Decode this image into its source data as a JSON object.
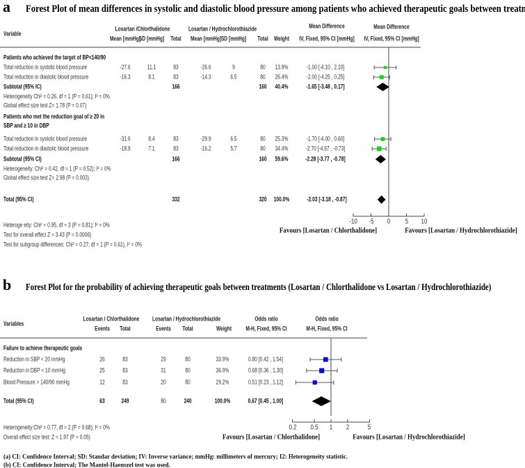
{
  "panel_a": {
    "label": "a",
    "title": "Forest Plot of mean differences in systolic and diastolic blood pressure among patients who achieved therapeutic goals between treatment groups",
    "header": {
      "variable": "Variable",
      "group1": "Losartan /Chlorthalidone",
      "group2": "Losartan / Hydrochlorothiazide",
      "mean": "Mean [mmHg]",
      "sd": "SD [mmHg]",
      "total": "Total",
      "weight": "Weight",
      "effect_title": "Mean Difference",
      "effect_sub": "IV, Fixed, 95% CI [mmHg]",
      "plot_title": "Mean Difference",
      "plot_sub": "IV, Fixed, 95% CI [mmHg]"
    },
    "groups": [
      {
        "title_lines": [
          "Patients who achieved the target of BP<140/90"
        ],
        "rows": [
          {
            "name": "Total reduction in systolic blood pressure",
            "mean1": "-27.6",
            "sd1": "11.1",
            "n1": "83",
            "mean2": "-26.6",
            "sd2": "9",
            "n2": "80",
            "weight": "13.9%",
            "ci": "-1.00 [-4.10 , 2.10]"
          },
          {
            "name": "Total reduction in diastolic blood pressure",
            "mean1": "-16.3",
            "sd1": "8.1",
            "n1": "83",
            "mean2": "-14.3",
            "sd2": "6.5",
            "n2": "80",
            "weight": "26.4%",
            "ci": "-2.00 [-4.25 , 0.25]"
          }
        ],
        "subtotal": {
          "label": "Subtotal (95% IC)",
          "n1": "166",
          "n2": "160",
          "weight": "40.4%",
          "ci": "-1.65 [-3.48 , 0.17]"
        },
        "heterogeneity": "Heterogeneity Chi² = 0.26, df = 1 (P = 0.61); I² = 0%",
        "effect_test": "Global effect size test Z= 1.78 (P = 0.07)"
      },
      {
        "title_lines": [
          "Patients who met the reduction goal of ≥ 20 in",
          "SBP and ≥ 10 in DBP"
        ],
        "rows": [
          {
            "name": "Total reduction in systolic blood pressure",
            "mean1": "-31.6",
            "sd1": "8.4",
            "n1": "83",
            "mean2": "-29.9",
            "sd2": "6.5",
            "n2": "80",
            "weight": "25.3%",
            "ci": "-1.70 [-4.00 , 0.60]"
          },
          {
            "name": "Total reduction in diastolic blood pressure",
            "mean1": "-18.9",
            "sd1": "7.1",
            "n1": "83",
            "mean2": "-16.2",
            "sd2": "5.7",
            "n2": "80",
            "weight": "34.4%",
            "ci": "-2.70 [-4.67 , -0.73]"
          }
        ],
        "subtotal": {
          "label": "Subtotal (95% CI)",
          "n1": "166",
          "n2": "160",
          "weight": "59.6%",
          "ci": "-2.28 [-3.77 , -0.78]"
        },
        "heterogeneity": "Heterogeneity: Chi² = 0.42, df = 1 (P = 0.52); I² = 0%",
        "effect_test": "Global effect size test Z= 2.98 (P = 0.003)"
      }
    ],
    "total": {
      "label": "Total (95% CI)",
      "n1": "332",
      "n2": "320",
      "weight": "100.0%",
      "ci": "-2.03 [-3.18 , -0.87]"
    },
    "footer": [
      "Heteroge eity: Chi² = 0.95, df = 3 (P = 0.81); I² = 0%",
      "Test for overall effect Z = 3.43 (P = 0.0006)",
      "Test for subgroup differences: Chi² = 0.27, df = 1 (P = 0.61), I² = 0%"
    ],
    "favours_left": "Favours [Losartan / Chlorthalidone]",
    "favours_right": "Favours [Losartan / Hydrochlorothiazide]"
  },
  "panel_b": {
    "label": "b",
    "title": "Forest Plot for the probability of achieving therapeutic goals between treatments (Losartan / Chlorthalidone vs Losartan / Hydrochlorothiazide)",
    "header": {
      "variable": "Variables",
      "group1": "Losartan / Chlorthalidone",
      "group2": "Losartan / Hydrochlorothiazide",
      "events": "Events",
      "total": "Total",
      "weight": "Weight",
      "effect_title": "Odds ratio",
      "effect_sub": "M-H, Fixed, 95% CI",
      "plot_title": "Odds ratio",
      "plot_sub": "M-H, Fixed, 95% CI"
    },
    "group_title": "Failure to achieve therapeutic goals",
    "rows": [
      {
        "name": "Reduction in SBP < 20 mmHg",
        "events1": "26",
        "total1": "83",
        "events2": "29",
        "total2": "80",
        "weight": "33.9%",
        "ci": "0.80 [0.42 , 1.54]"
      },
      {
        "name": "Reduction in DBP < 10 mmHg",
        "events1": "25",
        "total1": "83",
        "events2": "31",
        "total2": "80",
        "weight": "36.9%",
        "ci": "0.68 [0.36 , 1.30]"
      },
      {
        "name": "Blood Pressure > 140/90 mmHg",
        "events1": "12",
        "total1": "83",
        "events2": "20",
        "total2": "80",
        "weight": "29.2%",
        "ci": "0.51 [0.23 , 1.12]"
      }
    ],
    "total": {
      "label": "Total (95% CI)",
      "events1": "63",
      "total1": "249",
      "events2": "80",
      "total2": "240",
      "weight": "100.0%",
      "ci": "0.67 [0.45 , 1.00]"
    },
    "footer": [
      "Heterogeneity:Chi² = 0.77, df = 2 (P = 0.68); I² = 0%",
      "Overall effect size test: Z = 1.97 (P = 0.05)"
    ],
    "favours_left": "Favours [Losartan / Chlorthalidone]",
    "favours_right": "Favours [Losartan / Hydrochlorothiazide]"
  },
  "footnotes": [
    "(a) CI: Confidence Interval; SD: Standar deviation; IV: Inverse variance; mmHg: millimeters of mercury; I2: Heterogeneity statistic.",
    "(b) CI: Confidence Interval; The Mantel-Haenszel test was used."
  ],
  "colors": {
    "study_marker_a": "#22cc22",
    "study_marker_b": "#0a0ad0",
    "summary_diamond": "#000000",
    "ci_line": "#555555"
  },
  "chart_data": [
    {
      "type": "forest",
      "x_scale": "linear",
      "xlim": [
        -10,
        10
      ],
      "reference_line": 0,
      "ticks": [
        -10,
        -5,
        0,
        5,
        10
      ],
      "tick_labels": [
        "-10",
        "-5",
        "0",
        "5",
        "10"
      ],
      "xlabel_left": "Favours [Losartan / Chlorthalidone]",
      "xlabel_right": "Favours [Losartan / Hydrochlorothiazide]",
      "rows": [
        {
          "label": "Total reduction in systolic blood pressure",
          "kind": "study",
          "estimate": -1.0,
          "lower": -4.1,
          "upper": 2.1,
          "weight": 13.9
        },
        {
          "label": "Total reduction in diastolic blood pressure",
          "kind": "study",
          "estimate": -2.0,
          "lower": -4.25,
          "upper": 0.25,
          "weight": 26.4
        },
        {
          "label": "Subtotal (95% IC)",
          "kind": "summary",
          "estimate": -1.65,
          "lower": -3.48,
          "upper": 0.17,
          "weight": 40.4
        },
        {
          "label": "Total reduction in systolic blood pressure",
          "kind": "study",
          "estimate": -1.7,
          "lower": -4.0,
          "upper": 0.6,
          "weight": 25.3
        },
        {
          "label": "Total reduction in diastolic blood pressure",
          "kind": "study",
          "estimate": -2.7,
          "lower": -4.67,
          "upper": -0.73,
          "weight": 34.4
        },
        {
          "label": "Subtotal (95% CI)",
          "kind": "summary",
          "estimate": -2.28,
          "lower": -3.77,
          "upper": -0.78,
          "weight": 59.6
        },
        {
          "label": "Total (95% CI)",
          "kind": "summary",
          "estimate": -2.03,
          "lower": -3.18,
          "upper": -0.87,
          "weight": 100.0
        }
      ]
    },
    {
      "type": "forest",
      "x_scale": "log",
      "xlim": [
        0.2,
        5
      ],
      "reference_line": 1,
      "ticks": [
        0.2,
        0.5,
        1,
        2,
        5
      ],
      "tick_labels": [
        "0.2",
        "0.5",
        "1",
        "2",
        "5"
      ],
      "xlabel_left": "Favours [Losartan / Chlorthalidone]",
      "xlabel_right": "Favours [Losartan / Hydrochlorothiazide]",
      "rows": [
        {
          "label": "Reduction in SBP < 20 mmHg",
          "kind": "study",
          "estimate": 0.8,
          "lower": 0.42,
          "upper": 1.54,
          "weight": 33.9
        },
        {
          "label": "Reduction in DBP < 10 mmHg",
          "kind": "study",
          "estimate": 0.68,
          "lower": 0.36,
          "upper": 1.3,
          "weight": 36.9
        },
        {
          "label": "Blood Pressure > 140/90 mmHg",
          "kind": "study",
          "estimate": 0.51,
          "lower": 0.23,
          "upper": 1.12,
          "weight": 29.2
        },
        {
          "label": "Total (95% CI)",
          "kind": "summary",
          "estimate": 0.67,
          "lower": 0.45,
          "upper": 1.0,
          "weight": 100.0
        }
      ]
    }
  ]
}
